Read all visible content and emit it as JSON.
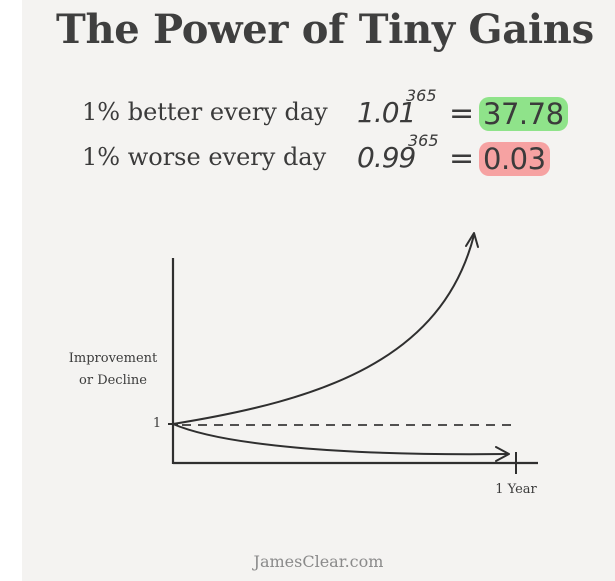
{
  "title": "The Power of Tiny Gains",
  "rows": [
    {
      "label": "1% better every day",
      "base": "1.01",
      "exponent": "365",
      "equals": "=",
      "result": "37.78",
      "result_color": "#8fe38a"
    },
    {
      "label": "1% worse every day",
      "base": "0.99",
      "exponent": "365",
      "equals": "=",
      "result": "0.03",
      "result_color": "#f6a2a2"
    }
  ],
  "chart": {
    "y_label_line1": "Improvement",
    "y_label_line2": "or Decline",
    "y_tick": "1",
    "x_tick": "1 Year"
  },
  "footer": "JamesClear.com"
}
